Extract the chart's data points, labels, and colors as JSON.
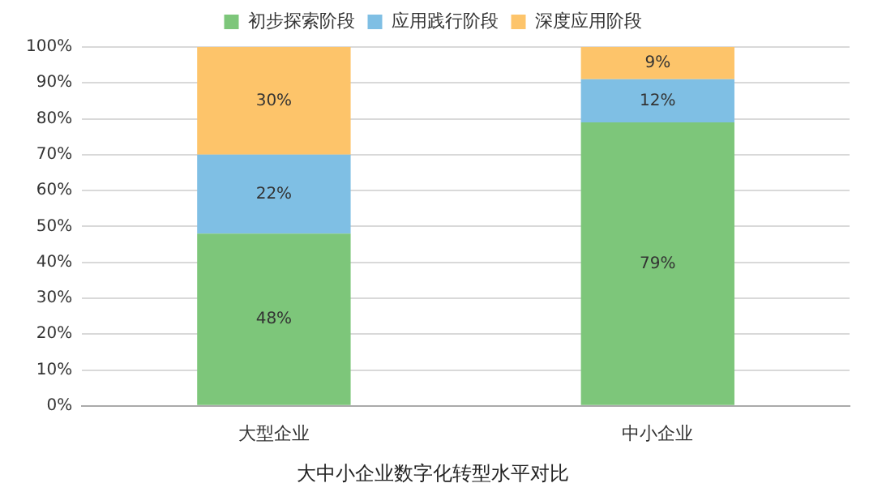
{
  "chart_data": {
    "type": "bar",
    "title": "大中小企业数字化转型水平对比",
    "categories": [
      "大型企业",
      "中小企业"
    ],
    "stacked": true,
    "series": [
      {
        "name": "初步探索阶段",
        "color": "#7dc67a",
        "values": [
          48,
          79
        ],
        "value_labels": [
          "48%",
          "79%"
        ]
      },
      {
        "name": "应用践行阶段",
        "color": "#7fbfe4",
        "values": [
          22,
          12
        ],
        "value_labels": [
          "22%",
          "12%"
        ]
      },
      {
        "name": "深度应用阶段",
        "color": "#fdc46a",
        "values": [
          30,
          9
        ],
        "value_labels": [
          "30%",
          "9%"
        ]
      }
    ],
    "ylim": [
      0,
      100
    ],
    "yticks": [
      {
        "value": 0,
        "label": "0%"
      },
      {
        "value": 10,
        "label": "10%"
      },
      {
        "value": 20,
        "label": "20%"
      },
      {
        "value": 30,
        "label": "30%"
      },
      {
        "value": 40,
        "label": "40%"
      },
      {
        "value": 50,
        "label": "50%"
      },
      {
        "value": 60,
        "label": "60%"
      },
      {
        "value": 70,
        "label": "70%"
      },
      {
        "value": 80,
        "label": "80%"
      },
      {
        "value": 90,
        "label": "90%"
      },
      {
        "value": 100,
        "label": "100%"
      }
    ],
    "grid": "y",
    "legend": "top"
  }
}
